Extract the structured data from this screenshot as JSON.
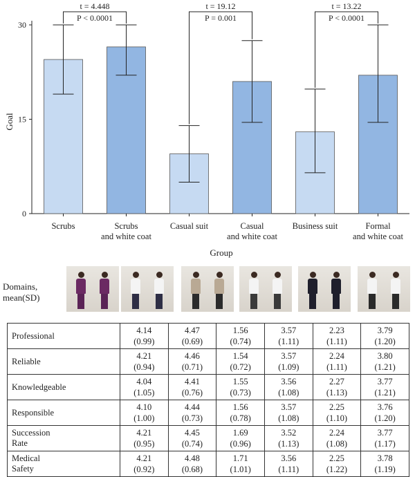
{
  "chart_data": {
    "type": "bar",
    "ylabel": "Goal",
    "xlabel": "Group",
    "ylim": [
      0,
      30
    ],
    "yticks": [
      "0",
      "15",
      "30"
    ],
    "categories": [
      [
        "Scrubs"
      ],
      [
        "Scrubs",
        "and white coat"
      ],
      [
        "Casual suit"
      ],
      [
        "Casual",
        "and white coat"
      ],
      [
        "Business suit"
      ],
      [
        "Formal",
        "and white coat"
      ]
    ],
    "values": [
      24.5,
      26.5,
      9.5,
      21.0,
      13.0,
      22.0
    ],
    "error_low": [
      19.0,
      22.0,
      5.0,
      14.5,
      6.5,
      14.5
    ],
    "error_high": [
      30.0,
      30.0,
      14.0,
      27.5,
      19.8,
      30.0
    ],
    "bar_colors": [
      "#c6daf2",
      "#92b6e2",
      "#c6daf2",
      "#92b6e2",
      "#c6daf2",
      "#92b6e2"
    ],
    "comparisons": [
      {
        "from": 0,
        "to": 1,
        "t": "t = 4.448",
        "p": "P < 0.0001",
        "level": 32.5
      },
      {
        "from": 2,
        "to": 3,
        "t": "t = 19.12",
        "p": "P = 0.001",
        "level": 32.5
      },
      {
        "from": 4,
        "to": 5,
        "t": "t = 13.22",
        "p": "P < 0.0001",
        "level": 32.5
      }
    ]
  },
  "domains_label": "Domains, mean(SD)",
  "photos": [
    {
      "shirt": "#6b2a63",
      "pants": "#5a2356"
    },
    {
      "shirt": "#f4f4f4",
      "pants": "#2e2e45"
    },
    {
      "shirt": "#b9a994",
      "pants": "#2b2b2b"
    },
    {
      "shirt": "#f4f4f4",
      "pants": "#3a3a3a"
    },
    {
      "shirt": "#1f1f2c",
      "pants": "#1f1f2c"
    },
    {
      "shirt": "#f4f4f4",
      "pants": "#2a2a2a"
    }
  ],
  "table": {
    "rows": [
      {
        "label": [
          "Professional"
        ],
        "cells": [
          [
            "4.14",
            "(0.99)"
          ],
          [
            "4.47",
            "(0.69)"
          ],
          [
            "1.56",
            "(0.74)"
          ],
          [
            "3.57",
            "(1.11)"
          ],
          [
            "2.23",
            "(1.11)"
          ],
          [
            "3.79",
            "(1.20)"
          ]
        ]
      },
      {
        "label": [
          "Reliable"
        ],
        "cells": [
          [
            "4.21",
            "(0.94)"
          ],
          [
            "4.46",
            "(0.71)"
          ],
          [
            "1.54",
            "(0.72)"
          ],
          [
            "3.57",
            "(1.09)"
          ],
          [
            "2.24",
            "(1.11)"
          ],
          [
            "3.80",
            "(1.21)"
          ]
        ]
      },
      {
        "label": [
          "Knowledgeable"
        ],
        "cells": [
          [
            "4.04",
            "(1.05)"
          ],
          [
            "4.41",
            "(0.76)"
          ],
          [
            "1.55",
            "(0.73)"
          ],
          [
            "3.56",
            "(1.08)"
          ],
          [
            "2.27",
            "(1.13)"
          ],
          [
            "3.77",
            "(1.21)"
          ]
        ]
      },
      {
        "label": [
          "Responsible"
        ],
        "cells": [
          [
            "4.10",
            "(1.00)"
          ],
          [
            "4.44",
            "(0.73)"
          ],
          [
            "1.56",
            "(0.78)"
          ],
          [
            "3.57",
            "(1.08)"
          ],
          [
            "2.25",
            "(1.10)"
          ],
          [
            "3.76",
            "(1.20)"
          ]
        ]
      },
      {
        "label": [
          "Succession",
          "Rate"
        ],
        "cells": [
          [
            "4.21",
            "(0.95)"
          ],
          [
            "4.45",
            "(0.74)"
          ],
          [
            "1.69",
            "(0.96)"
          ],
          [
            "3.52",
            "(1.13)"
          ],
          [
            "2.24",
            "(1.08)"
          ],
          [
            "3.77",
            "(1.17)"
          ]
        ]
      },
      {
        "label": [
          "Medical",
          "Safety"
        ],
        "cells": [
          [
            "4.21",
            "(0.92)"
          ],
          [
            "4.48",
            "(0.68)"
          ],
          [
            "1.71",
            "(1.01)"
          ],
          [
            "3.56",
            "(1.11)"
          ],
          [
            "2.25",
            "(1.22)"
          ],
          [
            "3.78",
            "(1.19)"
          ]
        ]
      }
    ]
  }
}
